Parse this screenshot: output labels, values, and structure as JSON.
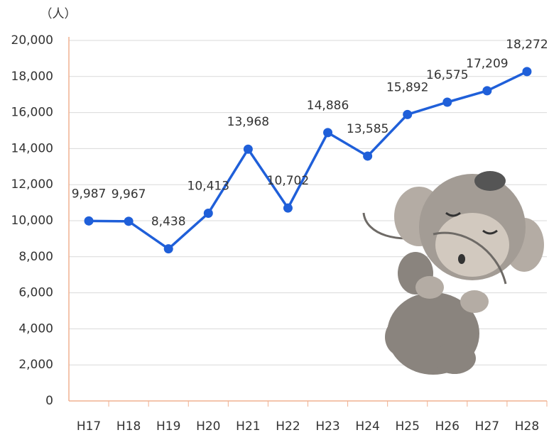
{
  "chart_data": {
    "type": "line",
    "y_unit": "（人）",
    "categories": [
      "H17",
      "H18",
      "H19",
      "H20",
      "H21",
      "H22",
      "H23",
      "H24",
      "H25",
      "H26",
      "H27",
      "H28"
    ],
    "series": [
      {
        "color": "#1f5fd9",
        "values": [
          9987,
          9967,
          8438,
          10413,
          13968,
          10702,
          14886,
          13585,
          15892,
          16575,
          17209,
          18272
        ],
        "value_labels": [
          "9,987",
          "9,967",
          "8,438",
          "10,413",
          "13,968",
          "10,702",
          "14,886",
          "13,585",
          "15,892",
          "16,575",
          "17,209",
          "18,272"
        ]
      }
    ],
    "ylim": [
      0,
      20000
    ],
    "yticks": [
      0,
      {
        "value": 2000,
        "label": "2,000"
      },
      {
        "value": 4000,
        "label": "4,000"
      },
      {
        "value": 6000,
        "label": "6,000"
      },
      {
        "value": 8000,
        "label": "8,000"
      },
      {
        "value": 10000,
        "label": "10,000"
      },
      {
        "value": 12000,
        "label": "12,000"
      },
      {
        "value": 14000,
        "label": "14,000"
      },
      {
        "value": 16000,
        "label": "16,000"
      },
      {
        "value": 18000,
        "label": "18,000"
      },
      {
        "value": 20000,
        "label": "20,000"
      }
    ],
    "grid": true
  }
}
